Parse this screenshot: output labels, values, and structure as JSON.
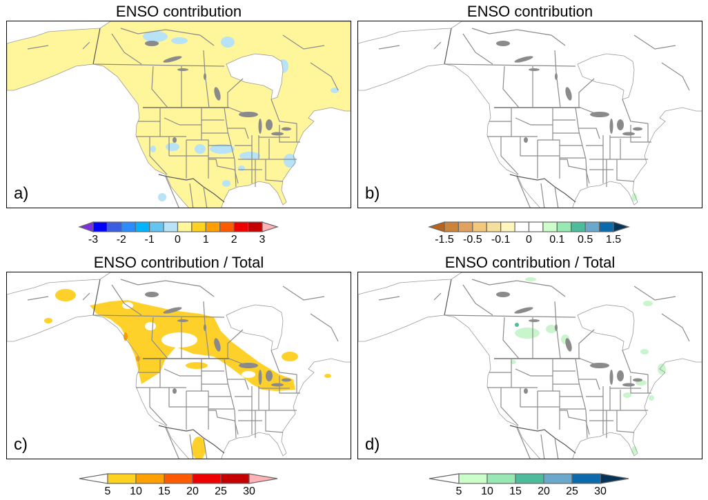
{
  "panels": [
    {
      "id": "a",
      "title": "ENSO contribution",
      "label": "a)",
      "shading": "land-yellow with light-blue patches"
    },
    {
      "id": "b",
      "title": "ENSO contribution",
      "label": "b)"
    },
    {
      "id": "c",
      "title": "ENSO contribution / Total",
      "label": "c)"
    },
    {
      "id": "d",
      "title": "ENSO contribution / Total",
      "label": "d)"
    }
  ],
  "colorbars": [
    {
      "id": "a",
      "ticks": [
        "-3",
        "-2",
        "-1",
        "0",
        "1",
        "2",
        "3"
      ],
      "left_tri": "#7b2fe0",
      "right_tri": "#ffb3b8",
      "colors": [
        "#0000ff",
        "#3a5ee0",
        "#2a8cff",
        "#00b4ff",
        "#66c4f0",
        "#b8e2f5",
        "#fff59a",
        "#ffd21f",
        "#ffa000",
        "#ff5a00",
        "#ee0000",
        "#c40000"
      ]
    },
    {
      "id": "b",
      "ticks": [
        "-1.5",
        "-0.5",
        "-0.1",
        "0",
        "0.1",
        "0.5",
        "1.5"
      ],
      "left_tri": "#b8641e",
      "right_tri": "#053358",
      "colors": [
        "#cc833a",
        "#e0a25e",
        "#f2c87c",
        "#f5df9c",
        "#fff5be",
        "#ffffff",
        "#ffffff",
        "#ccfecc",
        "#98e8b4",
        "#4cbc9a",
        "#6aa8cc",
        "#0a6aac"
      ]
    },
    {
      "id": "c",
      "ticks": [
        "5",
        "10",
        "15",
        "20",
        "25",
        "30"
      ],
      "left_tri": "#ffffff",
      "right_tri": "#ffb3b8",
      "colors": [
        "#ffd21f",
        "#ffa000",
        "#ff5a00",
        "#ee0000",
        "#c40000"
      ]
    },
    {
      "id": "d",
      "ticks": [
        "5",
        "10",
        "15",
        "20",
        "25",
        "30"
      ],
      "left_tri": "#ffffff",
      "right_tri": "#053358",
      "colors": [
        "#ccfecc",
        "#98e8b4",
        "#4cbc9a",
        "#6aa8cc",
        "#0a6aac"
      ]
    }
  ],
  "map_colors": {
    "border": "#8a8a8a",
    "land_a": "#fff59a",
    "neg_a": "#b8e2f5",
    "pos_c": "#fed12a",
    "pos_c_high": "#ff9a00",
    "pos_d": "#c8f5cc",
    "pos_d_high": "#4cbc9a"
  }
}
